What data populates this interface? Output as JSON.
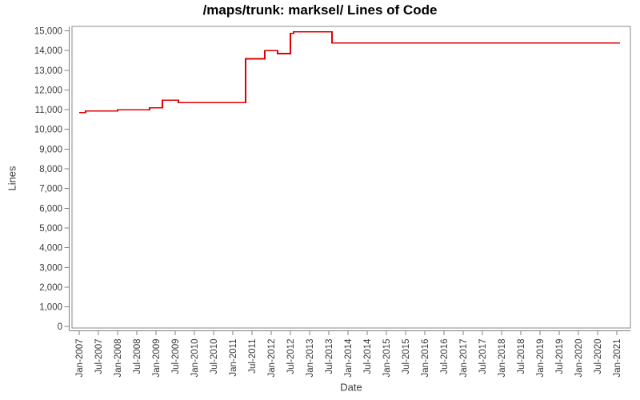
{
  "chart_data": {
    "type": "line",
    "title": "/maps/trunk: marksel/ Lines of Code",
    "xlabel": "Date",
    "ylabel": "Lines",
    "legend": "none",
    "grid": false,
    "ylim": [
      0,
      15000
    ],
    "y_ticks": [
      0,
      1000,
      2000,
      3000,
      4000,
      5000,
      6000,
      7000,
      8000,
      9000,
      10000,
      11000,
      12000,
      13000,
      14000,
      15000
    ],
    "x_ticks": [
      "Jan-2007",
      "Jul-2007",
      "Jan-2008",
      "Jul-2008",
      "Jan-2009",
      "Jul-2009",
      "Jan-2010",
      "Jul-2010",
      "Jan-2011",
      "Jul-2011",
      "Jan-2012",
      "Jul-2012",
      "Jan-2013",
      "Jul-2013",
      "Jan-2014",
      "Jul-2014",
      "Jan-2015",
      "Jul-2015",
      "Jan-2016",
      "Jul-2016",
      "Jan-2017",
      "Jul-2017",
      "Jan-2018",
      "Jul-2018",
      "Jan-2019",
      "Jul-2019",
      "Jan-2020",
      "Jul-2020",
      "Jan-2021"
    ],
    "x_range": [
      "2007-01",
      "2021-02"
    ],
    "series": [
      {
        "name": "Lines of Code",
        "color": "#e10000",
        "step": "after",
        "points": [
          [
            "2007-01",
            10850
          ],
          [
            "2007-03",
            10930
          ],
          [
            "2008-01",
            10990
          ],
          [
            "2008-11",
            11090
          ],
          [
            "2009-03",
            11480
          ],
          [
            "2009-08",
            11360
          ],
          [
            "2011-05",
            13580
          ],
          [
            "2011-11",
            14000
          ],
          [
            "2012-03",
            13840
          ],
          [
            "2012-07",
            14870
          ],
          [
            "2012-08",
            14950
          ],
          [
            "2013-08",
            14380
          ],
          [
            "2021-02",
            14380
          ]
        ]
      }
    ]
  },
  "colors": {
    "line": "#e10000",
    "frame": "#8a8a8a",
    "axis": "#808080",
    "tick_text": "#3a3a3a",
    "title_text": "#000000",
    "background": "#ffffff"
  }
}
